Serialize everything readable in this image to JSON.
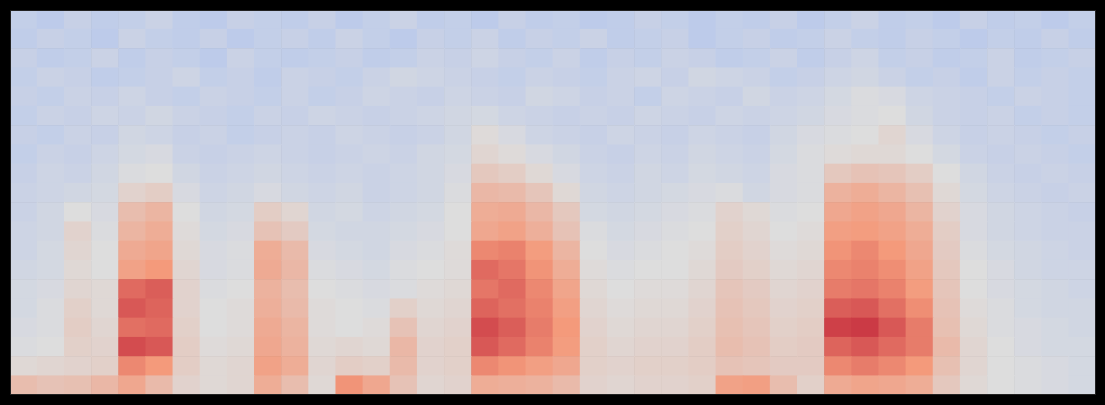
{
  "chart_data": {
    "type": "heatmap",
    "tick_labels": false,
    "grid": false,
    "clim": [
      0,
      10
    ],
    "cells": [
      [
        4.2,
        4.0,
        4.3,
        4.1,
        4.2,
        4.4,
        4.1,
        4.0,
        4.3,
        4.2,
        4.1,
        4.3,
        4.0,
        4.2,
        4.4,
        4.1,
        4.2,
        4.0,
        4.3,
        4.1,
        4.2,
        4.0,
        4.1,
        4.3,
        4.2,
        4.0,
        4.2,
        4.1,
        4.3,
        4.0,
        4.2,
        4.4,
        4.1,
        4.2,
        4.0,
        4.3,
        4.1,
        4.2,
        4.0,
        4.2
      ],
      [
        4.1,
        4.3,
        4.2,
        4.0,
        4.4,
        4.2,
        4.1,
        4.3,
        4.0,
        4.2,
        4.3,
        4.1,
        4.4,
        4.2,
        4.0,
        4.3,
        4.2,
        4.4,
        4.1,
        4.3,
        4.2,
        4.4,
        4.1,
        4.2,
        4.3,
        4.0,
        4.2,
        4.3,
        4.1,
        4.2,
        4.4,
        4.2,
        4.1,
        4.3,
        4.2,
        4.0,
        4.2,
        4.1,
        4.3,
        4.1
      ],
      [
        4.3,
        4.1,
        4.2,
        4.4,
        4.1,
        4.3,
        4.2,
        4.0,
        4.4,
        4.2,
        4.1,
        4.2,
        4.3,
        4.1,
        4.2,
        4.4,
        4.3,
        4.5,
        4.3,
        4.2,
        4.4,
        4.1,
        4.3,
        4.2,
        4.4,
        4.3,
        4.1,
        4.2,
        4.4,
        4.1,
        4.3,
        4.5,
        4.2,
        4.3,
        4.1,
        4.2,
        4.4,
        4.1,
        4.2,
        4.3
      ],
      [
        4.2,
        4.4,
        4.3,
        4.1,
        4.2,
        4.3,
        4.5,
        4.2,
        4.3,
        4.1,
        4.4,
        4.3,
        4.2,
        4.4,
        4.6,
        4.5,
        4.4,
        4.3,
        4.2,
        4.4,
        4.3,
        4.2,
        4.4,
        4.5,
        4.3,
        4.6,
        4.5,
        4.4,
        4.2,
        4.3,
        4.5,
        4.6,
        4.4,
        4.2,
        4.3,
        4.1,
        4.4,
        4.2,
        4.3,
        4.2
      ],
      [
        4.3,
        4.2,
        4.4,
        4.3,
        4.5,
        4.3,
        4.2,
        4.4,
        4.3,
        4.2,
        4.4,
        4.2,
        4.3,
        4.5,
        4.4,
        4.3,
        4.5,
        4.4,
        4.3,
        4.6,
        4.5,
        4.3,
        4.4,
        4.2,
        4.5,
        4.4,
        4.3,
        4.6,
        4.4,
        4.5,
        4.7,
        4.9,
        4.8,
        4.5,
        4.4,
        4.3,
        4.2,
        4.4,
        4.3,
        4.2
      ],
      [
        4.2,
        4.4,
        4.3,
        4.5,
        4.4,
        4.6,
        4.4,
        4.3,
        4.2,
        4.4,
        4.3,
        4.5,
        4.4,
        4.3,
        4.4,
        4.5,
        4.6,
        4.7,
        4.5,
        4.4,
        4.3,
        4.4,
        4.3,
        4.5,
        4.4,
        4.3,
        4.5,
        4.4,
        4.5,
        4.6,
        4.8,
        4.9,
        5.0,
        4.6,
        4.4,
        4.3,
        4.4,
        4.2,
        4.3,
        4.2
      ],
      [
        4.3,
        4.2,
        4.4,
        4.3,
        4.6,
        4.5,
        4.3,
        4.4,
        4.2,
        4.3,
        4.4,
        4.3,
        4.5,
        4.4,
        4.3,
        4.4,
        4.6,
        5.1,
        4.8,
        4.5,
        4.4,
        4.3,
        4.5,
        4.4,
        4.3,
        4.5,
        4.4,
        4.3,
        4.6,
        4.8,
        4.9,
        5.0,
        5.3,
        4.8,
        4.5,
        4.3,
        4.4,
        4.3,
        4.2,
        4.3
      ],
      [
        4.2,
        4.4,
        4.3,
        4.5,
        4.7,
        4.8,
        4.4,
        4.3,
        4.4,
        4.5,
        4.4,
        4.3,
        4.4,
        4.5,
        4.4,
        4.6,
        4.7,
        5.3,
        5.1,
        4.8,
        4.6,
        4.4,
        4.3,
        4.5,
        4.4,
        4.6,
        4.5,
        4.4,
        4.7,
        4.9,
        5.1,
        5.2,
        5.2,
        5.0,
        4.7,
        4.4,
        4.3,
        4.4,
        4.3,
        4.2
      ],
      [
        4.3,
        4.5,
        4.4,
        4.6,
        4.9,
        5.0,
        4.6,
        4.4,
        4.5,
        4.6,
        4.5,
        4.4,
        4.5,
        4.4,
        4.5,
        4.6,
        4.8,
        5.8,
        5.6,
        5.2,
        4.8,
        4.5,
        4.4,
        4.6,
        4.5,
        4.7,
        4.6,
        4.5,
        4.8,
        4.9,
        5.8,
        6.0,
        5.9,
        5.6,
        5.0,
        4.6,
        4.4,
        4.3,
        4.4,
        4.3
      ],
      [
        4.4,
        4.5,
        4.6,
        4.7,
        5.4,
        5.6,
        4.8,
        4.5,
        4.6,
        4.8,
        4.6,
        4.5,
        4.6,
        4.4,
        4.5,
        4.6,
        4.9,
        6.4,
        6.3,
        5.9,
        5.2,
        4.6,
        4.5,
        4.6,
        4.7,
        4.8,
        4.9,
        4.6,
        4.8,
        4.9,
        6.6,
        6.8,
        6.5,
        6.1,
        5.2,
        4.7,
        4.5,
        4.4,
        4.3,
        4.4
      ],
      [
        4.4,
        4.6,
        5.0,
        4.8,
        6.2,
        6.5,
        5.0,
        4.6,
        4.7,
        5.6,
        5.3,
        4.6,
        4.7,
        4.5,
        4.6,
        4.7,
        5.0,
        6.8,
        6.9,
        6.4,
        5.8,
        4.7,
        4.6,
        4.7,
        4.8,
        4.9,
        5.4,
        5.2,
        4.9,
        5.0,
        7.0,
        7.2,
        7.0,
        6.5,
        5.4,
        4.8,
        4.6,
        4.5,
        4.4,
        4.3
      ],
      [
        4.5,
        4.6,
        5.4,
        4.9,
        6.5,
        6.8,
        5.1,
        4.7,
        4.8,
        6.0,
        5.7,
        4.7,
        4.6,
        4.6,
        4.7,
        4.8,
        5.0,
        7.0,
        7.2,
        6.7,
        6.0,
        4.9,
        4.7,
        4.8,
        4.9,
        5.0,
        5.5,
        5.3,
        5.0,
        5.1,
        7.3,
        7.4,
        7.2,
        6.8,
        5.6,
        4.8,
        4.6,
        4.5,
        4.4,
        4.4
      ],
      [
        4.5,
        4.7,
        5.3,
        5.0,
        6.9,
        7.1,
        5.2,
        4.8,
        4.9,
        6.8,
        6.3,
        4.8,
        4.7,
        4.6,
        4.8,
        4.9,
        5.1,
        7.8,
        7.9,
        7.4,
        6.5,
        5.0,
        4.8,
        4.9,
        5.0,
        5.1,
        5.6,
        5.4,
        5.1,
        5.2,
        7.6,
        7.8,
        7.5,
        7.0,
        5.7,
        4.9,
        4.7,
        4.6,
        4.5,
        4.4
      ],
      [
        4.6,
        4.7,
        5.2,
        5.0,
        7.2,
        7.5,
        5.3,
        4.8,
        4.9,
        6.9,
        6.4,
        4.9,
        4.8,
        4.7,
        4.9,
        5.0,
        5.1,
        8.3,
        8.1,
        7.6,
        6.8,
        5.1,
        4.9,
        5.0,
        5.0,
        5.2,
        5.7,
        5.5,
        5.2,
        5.3,
        7.8,
        7.9,
        7.7,
        7.2,
        5.8,
        5.0,
        4.8,
        4.6,
        4.5,
        4.5
      ],
      [
        4.7,
        4.8,
        5.3,
        5.2,
        8.3,
        8.5,
        5.4,
        4.9,
        5.0,
        6.6,
        6.2,
        5.0,
        4.9,
        4.8,
        4.9,
        5.1,
        5.2,
        8.1,
        8.3,
        7.8,
        7.1,
        5.2,
        5.0,
        5.1,
        5.1,
        5.3,
        5.9,
        5.7,
        5.3,
        5.4,
        8.0,
        8.1,
        7.9,
        7.4,
        5.9,
        5.0,
        4.8,
        4.7,
        4.6,
        4.5
      ],
      [
        4.7,
        4.9,
        5.5,
        5.2,
        8.6,
        8.4,
        5.4,
        5.0,
        5.1,
        6.7,
        6.3,
        5.1,
        5.0,
        4.9,
        5.5,
        5.2,
        5.3,
        8.4,
        8.2,
        7.9,
        7.3,
        5.3,
        5.1,
        5.2,
        5.2,
        5.4,
        6.0,
        5.8,
        5.4,
        5.5,
        8.5,
        8.6,
        8.2,
        7.7,
        6.0,
        5.1,
        4.9,
        4.7,
        4.6,
        4.6
      ],
      [
        4.8,
        4.9,
        5.6,
        5.3,
        8.2,
        8.3,
        5.5,
        5.0,
        5.1,
        6.9,
        6.5,
        5.1,
        5.0,
        5.1,
        6.0,
        5.3,
        5.4,
        8.8,
        8.5,
        8.0,
        7.5,
        5.4,
        5.2,
        5.3,
        5.3,
        5.5,
        6.1,
        5.9,
        5.5,
        5.6,
        9.0,
        9.1,
        8.6,
        8.0,
        6.1,
        5.2,
        4.9,
        4.8,
        4.7,
        4.6
      ],
      [
        4.9,
        5.0,
        5.5,
        5.4,
        8.8,
        8.6,
        5.6,
        5.1,
        5.2,
        7.0,
        6.6,
        5.2,
        5.3,
        5.2,
        6.4,
        5.4,
        5.5,
        8.6,
        8.3,
        7.9,
        7.4,
        5.5,
        5.3,
        5.4,
        5.4,
        5.6,
        6.2,
        6.0,
        5.6,
        5.7,
        8.4,
        8.6,
        8.3,
        8.0,
        6.3,
        5.3,
        5.0,
        4.8,
        4.7,
        4.7
      ],
      [
        5.2,
        5.3,
        5.4,
        5.5,
        7.8,
        7.5,
        5.6,
        5.2,
        5.3,
        7.2,
        6.8,
        5.3,
        5.6,
        5.5,
        6.3,
        5.4,
        5.5,
        7.8,
        7.6,
        7.3,
        7.0,
        5.5,
        5.4,
        5.5,
        5.5,
        5.6,
        6.0,
        5.9,
        5.7,
        5.7,
        7.8,
        8.0,
        7.8,
        7.5,
        6.1,
        5.3,
        5.0,
        4.9,
        4.8,
        4.7
      ],
      [
        6.2,
        6.0,
        6.1,
        6.4,
        7.0,
        6.3,
        5.4,
        5.2,
        5.3,
        6.8,
        6.2,
        5.2,
        7.6,
        7.0,
        6.0,
        5.3,
        5.4,
        6.8,
        6.7,
        6.6,
        6.3,
        5.4,
        5.3,
        5.4,
        5.4,
        5.5,
        7.2,
        7.3,
        6.2,
        5.5,
        6.9,
        7.1,
        7.0,
        6.8,
        5.8,
        5.2,
        5.0,
        4.9,
        4.8,
        4.7
      ]
    ]
  }
}
